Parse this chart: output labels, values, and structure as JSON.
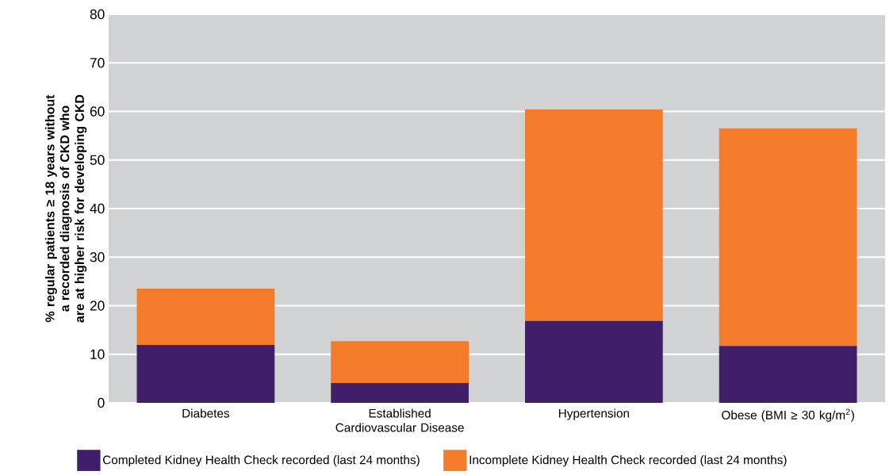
{
  "chart_data": {
    "type": "bar",
    "stacked": true,
    "ylabel": "% regular patients ≥ 18 years without a recorded diagnosis of CKD who are at higher risk for developing CKD",
    "categories": [
      "Diabetes",
      "Established Cardiovascular Disease",
      "Hypertension",
      "Obese (BMI ≥ 30 kg/m$^{2}$)"
    ],
    "series": [
      {
        "name": "Completed Kidney Health Check recorded (last 24 months)",
        "color": "#411e6a",
        "values": [
          11.9,
          4.1,
          16.9,
          11.7
        ]
      },
      {
        "name": "Incomplete Kidney Health Check recorded (last 24 months)",
        "color": "#f47b2a",
        "values": [
          11.6,
          8.6,
          43.5,
          44.8
        ]
      }
    ],
    "ylim": [
      0,
      80
    ],
    "yticks": [
      0,
      10,
      20,
      30,
      40,
      50,
      60,
      70,
      80
    ],
    "grid": "y",
    "legend": "bottom"
  }
}
